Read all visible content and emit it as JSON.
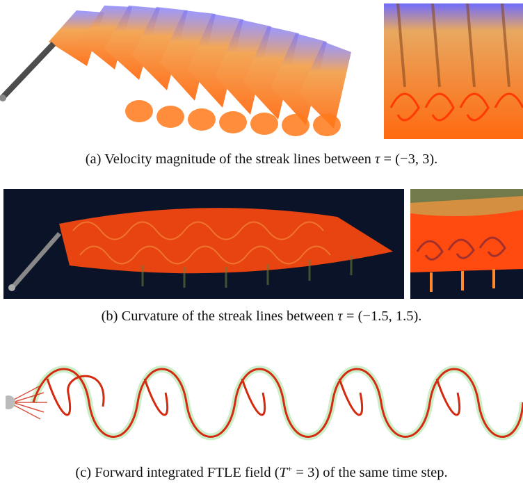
{
  "figure": {
    "panels": [
      {
        "id": "a",
        "caption_prefix": "(a) Velocity magnitude of the streak lines between ",
        "caption_var": "τ",
        "caption_suffix": " = (−3, 3).",
        "colors": {
          "background": "#ffffff",
          "hot": "#ff7a1a",
          "cool": "#6f6cff"
        }
      },
      {
        "id": "b",
        "caption_prefix": "(b) Curvature of the streak lines between ",
        "caption_var": "τ",
        "caption_suffix": " = (−1.5, 1.5).",
        "colors": {
          "background": "#0b1328",
          "hot": "#ff4a10",
          "dim": "#6b7a3a"
        }
      },
      {
        "id": "c",
        "caption_prefix": "(c) Forward integrated FTLE field (",
        "caption_var": "T",
        "caption_sup": "+",
        "caption_suffix": " = 3) of the same time step.",
        "colors": {
          "background": "#ffffff",
          "ridge": "#d42a10",
          "halo": "#7fd67a"
        }
      }
    ]
  }
}
